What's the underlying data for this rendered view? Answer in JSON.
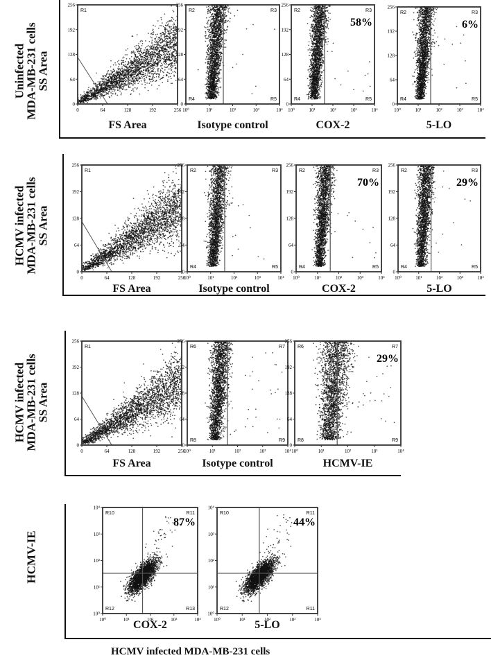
{
  "figure": {
    "caption": "HCMV infected MDA-MB-231 cells"
  },
  "rows": [
    {
      "label_lines": [
        "Uninfected",
        "MDA-MB-231 cells",
        "SS  Area"
      ]
    },
    {
      "label_lines": [
        "HCMV infected",
        "MDA-MB-231 cells",
        "SS  Area"
      ]
    },
    {
      "label_lines": [
        "HCMV infected",
        "MDA-MB-231 cells",
        "SS  Area"
      ]
    },
    {
      "label_lines": [
        "HCMV-IE"
      ]
    }
  ],
  "chart_data": [
    {
      "type": "scatter",
      "row": 0,
      "kind": "fs_ss",
      "xlabel": "FS Area",
      "x_ticks": [
        "0",
        "64",
        "128",
        "192",
        "256"
      ],
      "y_ticks": [
        "0",
        "64",
        "128",
        "192",
        "256"
      ],
      "xlim": [
        0,
        256
      ],
      "ylim": [
        0,
        256
      ],
      "regions": [
        "R1"
      ],
      "percent": ""
    },
    {
      "type": "scatter",
      "row": 0,
      "kind": "gate",
      "xlabel": "Isotype control",
      "x_ticks": [
        "10⁰",
        "10¹",
        "10²",
        "10³",
        "10⁴"
      ],
      "y_ticks": [
        "0",
        "64",
        "128",
        "192",
        "256"
      ],
      "xscale": "log",
      "xlim": [
        1,
        10000
      ],
      "ylim": [
        0,
        256
      ],
      "regions": [
        "R2",
        "R3",
        "R4",
        "R5"
      ],
      "percent": ""
    },
    {
      "type": "scatter",
      "row": 0,
      "kind": "gate",
      "xlabel": "COX-2",
      "x_ticks": [
        "10⁰",
        "10¹",
        "10²",
        "10³",
        "10⁴"
      ],
      "y_ticks": [
        "0",
        "64",
        "128",
        "192",
        "256"
      ],
      "xscale": "log",
      "xlim": [
        1,
        10000
      ],
      "ylim": [
        0,
        256
      ],
      "regions": [
        "R2",
        "R3",
        "R4",
        "R5"
      ],
      "percent": "58%"
    },
    {
      "type": "scatter",
      "row": 0,
      "kind": "gate",
      "xlabel": "5-LO",
      "x_ticks": [
        "10⁰",
        "10¹",
        "10²",
        "10³",
        "10⁴"
      ],
      "y_ticks": [
        "0",
        "64",
        "128",
        "192",
        "256"
      ],
      "xscale": "log",
      "xlim": [
        1,
        10000
      ],
      "ylim": [
        0,
        256
      ],
      "regions": [
        "R2",
        "R3",
        "R4",
        "R5"
      ],
      "percent": "6%"
    },
    {
      "type": "scatter",
      "row": 1,
      "kind": "fs_ss",
      "xlabel": "FS Area",
      "x_ticks": [
        "0",
        "64",
        "128",
        "192",
        "256"
      ],
      "y_ticks": [
        "0",
        "64",
        "128",
        "192",
        "256"
      ],
      "xlim": [
        0,
        256
      ],
      "ylim": [
        0,
        256
      ],
      "regions": [
        "R1"
      ],
      "percent": ""
    },
    {
      "type": "scatter",
      "row": 1,
      "kind": "gate",
      "xlabel": "Isotype control",
      "x_ticks": [
        "10⁰",
        "10¹",
        "10²",
        "10³",
        "10⁴"
      ],
      "y_ticks": [
        "0",
        "64",
        "128",
        "192",
        "256"
      ],
      "xscale": "log",
      "xlim": [
        1,
        10000
      ],
      "ylim": [
        0,
        256
      ],
      "regions": [
        "R2",
        "R3",
        "R4",
        "R5"
      ],
      "percent": ""
    },
    {
      "type": "scatter",
      "row": 1,
      "kind": "gate",
      "xlabel": "COX-2",
      "x_ticks": [
        "10⁰",
        "10¹",
        "10²",
        "10³",
        "10⁴"
      ],
      "y_ticks": [
        "0",
        "64",
        "128",
        "192",
        "256"
      ],
      "xscale": "log",
      "xlim": [
        1,
        10000
      ],
      "ylim": [
        0,
        256
      ],
      "regions": [
        "R2",
        "R3",
        "R4",
        "R5"
      ],
      "percent": "70%"
    },
    {
      "type": "scatter",
      "row": 1,
      "kind": "gate",
      "xlabel": "5-LO",
      "x_ticks": [
        "10⁰",
        "10¹",
        "10²",
        "10³",
        "10⁴"
      ],
      "y_ticks": [
        "0",
        "64",
        "128",
        "192",
        "256"
      ],
      "xscale": "log",
      "xlim": [
        1,
        10000
      ],
      "ylim": [
        0,
        256
      ],
      "regions": [
        "R2",
        "R3",
        "R4",
        "R5"
      ],
      "percent": "29%"
    },
    {
      "type": "scatter",
      "row": 2,
      "kind": "fs_ss",
      "xlabel": "FS Area",
      "x_ticks": [
        "0",
        "64",
        "128",
        "192",
        "256"
      ],
      "y_ticks": [
        "0",
        "64",
        "128",
        "192",
        "256"
      ],
      "xlim": [
        0,
        256
      ],
      "ylim": [
        0,
        256
      ],
      "regions": [
        "R1"
      ],
      "percent": ""
    },
    {
      "type": "scatter",
      "row": 2,
      "kind": "gate",
      "xlabel": "Isotype control",
      "x_ticks": [
        "10⁰",
        "10¹",
        "10²",
        "10³",
        "10⁴"
      ],
      "y_ticks": [
        "0",
        "64",
        "128",
        "192",
        "256"
      ],
      "xscale": "log",
      "xlim": [
        1,
        10000
      ],
      "ylim": [
        0,
        256
      ],
      "regions": [
        "R6",
        "R7",
        "R8",
        "R9"
      ],
      "percent": ""
    },
    {
      "type": "scatter",
      "row": 2,
      "kind": "gate",
      "xlabel": "HCMV-IE",
      "x_ticks": [
        "10⁰",
        "10¹",
        "10²",
        "10³",
        "10⁴"
      ],
      "y_ticks": [
        "0",
        "64",
        "128",
        "192",
        "256"
      ],
      "xscale": "log",
      "xlim": [
        1,
        10000
      ],
      "ylim": [
        0,
        256
      ],
      "regions": [
        "R6",
        "R7",
        "R8",
        "R9"
      ],
      "percent": "29%"
    },
    {
      "type": "scatter",
      "row": 3,
      "kind": "quad",
      "xlabel": "COX-2",
      "ylabel": "HCMV-IE",
      "x_ticks": [
        "10⁰",
        "10¹",
        "10²",
        "10³",
        "10⁴"
      ],
      "y_ticks": [
        "10⁰",
        "10¹",
        "10²",
        "10³",
        "10⁴"
      ],
      "xscale": "log",
      "yscale": "log",
      "xlim": [
        1,
        10000
      ],
      "ylim": [
        1,
        10000
      ],
      "regions": [
        "R10",
        "R11",
        "R12",
        "R13"
      ],
      "percent": "87%"
    },
    {
      "type": "scatter",
      "row": 3,
      "kind": "quad",
      "xlabel": "5-LO",
      "ylabel": "HCMV-IE",
      "x_ticks": [
        "10⁰",
        "10¹",
        "10²",
        "10³",
        "10⁴"
      ],
      "y_ticks": [
        "10⁰",
        "10¹",
        "10²",
        "10³",
        "10⁴"
      ],
      "xscale": "log",
      "yscale": "log",
      "xlim": [
        1,
        10000
      ],
      "ylim": [
        1,
        10000
      ],
      "regions": [
        "R10",
        "R11",
        "R12",
        "R11"
      ],
      "percent": "44%"
    }
  ]
}
